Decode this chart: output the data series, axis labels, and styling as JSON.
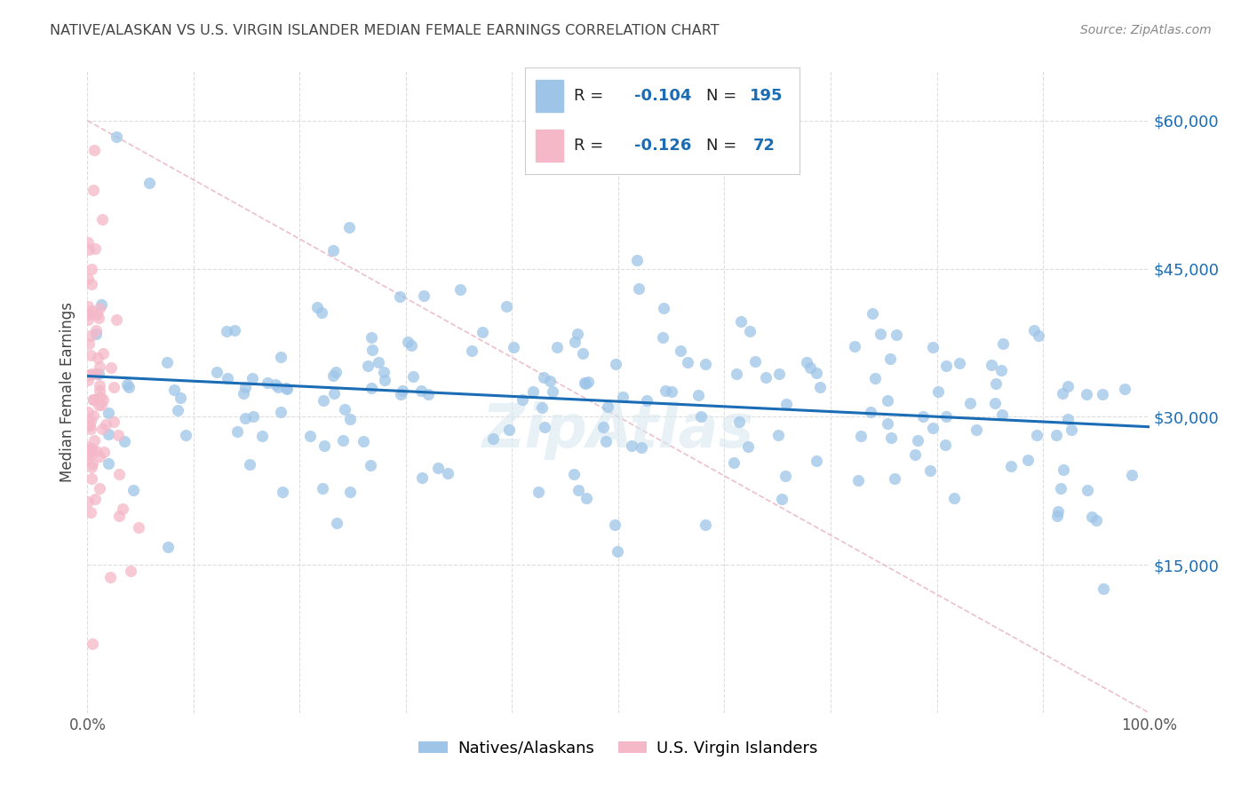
{
  "title": "NATIVE/ALASKAN VS U.S. VIRGIN ISLANDER MEDIAN FEMALE EARNINGS CORRELATION CHART",
  "source": "Source: ZipAtlas.com",
  "ylabel": "Median Female Earnings",
  "xlabel": "",
  "xlim": [
    0,
    1.0
  ],
  "ylim": [
    0,
    65000
  ],
  "yticks": [
    0,
    15000,
    30000,
    45000,
    60000
  ],
  "xticks": [
    0.0,
    0.1,
    0.2,
    0.3,
    0.4,
    0.5,
    0.6,
    0.7,
    0.8,
    0.9,
    1.0
  ],
  "xtick_labels": [
    "0.0%",
    "",
    "",
    "",
    "",
    "",
    "",
    "",
    "",
    "",
    "100.0%"
  ],
  "blue_color": "#9ec5e8",
  "pink_color": "#f4b8c8",
  "line_color_blue": "#1a6cb5",
  "line_color_pink": "#e8a0b0",
  "ref_line_color": "#e8b0c0",
  "grid_color": "#dddddd",
  "tick_color": "#1a6cb5",
  "title_color": "#444444",
  "source_color": "#888888",
  "ylabel_color": "#444444",
  "watermark": "ZipAtlas",
  "R_blue": -0.104,
  "N_blue": 195,
  "R_pink": -0.126,
  "N_pink": 72,
  "legend_label_blue": "Natives/Alaskans",
  "legend_label_pink": "U.S. Virgin Islanders"
}
